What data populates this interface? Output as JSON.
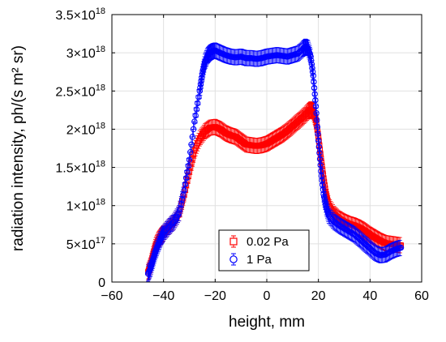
{
  "chart_data": {
    "type": "scatter",
    "title": "",
    "xlabel": "height, mm",
    "ylabel": "radiation intensity, ph/(s m² sr)",
    "xlim": [
      -60,
      60
    ],
    "ylim": [
      0,
      3.5e+18
    ],
    "x_ticks": [
      -60,
      -40,
      -20,
      0,
      20,
      40,
      60
    ],
    "x_tick_labels": [
      "−60",
      "−40",
      "−20",
      "0",
      "20",
      "40",
      "60"
    ],
    "y_ticks": [
      0,
      5e+17,
      1e+18,
      1.5e+18,
      2e+18,
      2.5e+18,
      3e+18,
      3.5e+18
    ],
    "y_tick_labels": [
      {
        "mant": "0",
        "exp": ""
      },
      {
        "mant": "5×10",
        "exp": "17"
      },
      {
        "mant": "1×10",
        "exp": "18"
      },
      {
        "mant": "1.5×10",
        "exp": "18"
      },
      {
        "mant": "2×10",
        "exp": "18"
      },
      {
        "mant": "2.5×10",
        "exp": "18"
      },
      {
        "mant": "3×10",
        "exp": "18"
      },
      {
        "mant": "3.5×10",
        "exp": "18"
      }
    ],
    "grid": true,
    "legend_position": "bottom-center",
    "series": [
      {
        "name": "0.02 Pa",
        "marker": "square",
        "color": "#ff0000",
        "x": [
          -46,
          -45,
          -44,
          -43,
          -42,
          -41,
          -40,
          -38,
          -36,
          -34,
          -32,
          -30,
          -28,
          -26,
          -24,
          -22,
          -20,
          -18,
          -16,
          -14,
          -12,
          -10,
          -8,
          -6,
          -4,
          -2,
          0,
          2,
          4,
          6,
          8,
          10,
          12,
          14,
          16,
          17,
          18,
          19,
          20,
          21,
          22,
          23,
          24,
          26,
          28,
          30,
          32,
          34,
          36,
          38,
          40,
          42,
          44,
          46,
          48,
          50,
          52
        ],
        "y": [
          1.3e+17,
          2.2e+17,
          3.6e+17,
          4.8e+17,
          5.5e+17,
          6e+17,
          6.4e+17,
          7.2e+17,
          7.9e+17,
          9e+17,
          1.15e+18,
          1.45e+18,
          1.72e+18,
          1.88e+18,
          1.97e+18,
          2.02e+18,
          2.03e+18,
          2e+18,
          1.95e+18,
          1.92e+18,
          1.9e+18,
          1.85e+18,
          1.8e+18,
          1.79e+18,
          1.78e+18,
          1.79e+18,
          1.81e+18,
          1.85e+18,
          1.89e+18,
          1.93e+18,
          1.98e+18,
          2.04e+18,
          2.1e+18,
          2.16e+18,
          2.23e+18,
          2.26e+18,
          2.23e+18,
          2.12e+18,
          1.9e+18,
          1.62e+18,
          1.36e+18,
          1.14e+18,
          1e+18,
          8.9e+17,
          8.3e+17,
          7.9e+17,
          7.6e+17,
          7.4e+17,
          7.1e+17,
          6.7e+17,
          6.2e+17,
          5.8e+17,
          5.4e+17,
          5.1e+17,
          5e+17,
          4.9e+17,
          4.8e+17
        ],
        "err": 1e+17
      },
      {
        "name": "1 Pa",
        "marker": "circle",
        "color": "#0000ff",
        "x": [
          -46,
          -45,
          -44,
          -43,
          -42,
          -41,
          -40,
          -38,
          -36,
          -34,
          -32,
          -30,
          -28,
          -26,
          -25,
          -24,
          -23,
          -22,
          -21,
          -20,
          -18,
          -16,
          -14,
          -12,
          -10,
          -8,
          -6,
          -4,
          -2,
          0,
          2,
          4,
          6,
          8,
          10,
          12,
          14,
          15,
          16,
          17,
          18,
          19,
          20,
          21,
          22,
          23,
          24,
          26,
          28,
          30,
          32,
          34,
          36,
          38,
          40,
          42,
          44,
          46,
          48,
          50,
          52
        ],
        "y": [
          1.1e+17,
          1.8e+17,
          3e+17,
          4.1e+17,
          5e+17,
          5.8e+17,
          6.4e+17,
          7.2e+17,
          7.9e+17,
          9e+17,
          1.2e+18,
          1.6e+18,
          2.1e+18,
          2.5e+18,
          2.72e+18,
          2.88e+18,
          2.96e+18,
          3e+18,
          3.02e+18,
          3.03e+18,
          3e+18,
          2.97e+18,
          2.95e+18,
          2.94e+18,
          2.95e+18,
          2.93e+18,
          2.93e+18,
          2.92e+18,
          2.93e+18,
          2.95e+18,
          2.96e+18,
          2.97e+18,
          2.96e+18,
          2.95e+18,
          2.97e+18,
          2.99e+18,
          3.05e+18,
          3.08e+18,
          3.06e+18,
          2.95e+18,
          2.7e+18,
          2.3e+18,
          1.85e+18,
          1.45e+18,
          1.15e+18,
          9.8e+17,
          8.7e+17,
          7.9e+17,
          7.4e+17,
          7e+17,
          6.6e+17,
          6.2e+17,
          5.6e+17,
          5e+17,
          4.4e+17,
          3.8e+17,
          3.5e+17,
          3.6e+17,
          4e+17,
          4.3e+17,
          4.5e+17
        ],
        "err": 1e+17
      }
    ]
  }
}
